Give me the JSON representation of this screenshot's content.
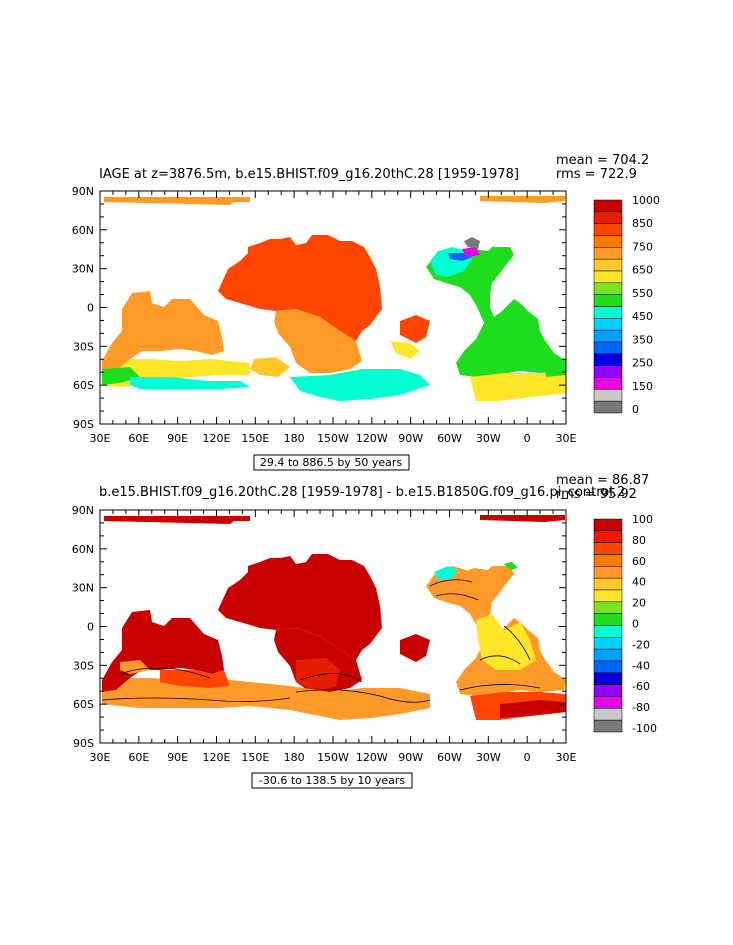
{
  "panels": [
    {
      "title": "IAGE at z=3876.5m, b.e15.BHIST.f09_g16.20thC.28 [1959-1978]",
      "stats": {
        "mean": "mean = 704.2",
        "rms": "rms = 722.9"
      },
      "contour_info": "29.4 to 886.5 by 50 years",
      "colorbar": {
        "labels": [
          "1000",
          "850",
          "750",
          "650",
          "550",
          "450",
          "350",
          "250",
          "150",
          "0"
        ],
        "colors": [
          "#c80000",
          "#e61e00",
          "#ff4600",
          "#ff7800",
          "#ff9a28",
          "#ffc828",
          "#ffe628",
          "#78e61e",
          "#1edc1e",
          "#00ffd2",
          "#00d2ff",
          "#00a0ff",
          "#0064ff",
          "#0000dc",
          "#9600ff",
          "#e600e6",
          "#c8c8c8",
          "#787878"
        ]
      }
    },
    {
      "title": "b.e15.BHIST.f09_g16.20thC.28 [1959-1978] - b.e15.B1850G.f09_g16.pi_control.2",
      "stats": {
        "mean": "mean = 86.87",
        "rms": "rms = 95.92"
      },
      "contour_info": "-30.6 to 138.5 by 10 years",
      "colorbar": {
        "labels": [
          "100",
          "80",
          "60",
          "40",
          "20",
          "0",
          "-20",
          "-40",
          "-60",
          "-80",
          "-100"
        ],
        "colors": [
          "#c80000",
          "#e61e00",
          "#ff4600",
          "#ff7800",
          "#ff9a28",
          "#ffc828",
          "#ffe628",
          "#78e61e",
          "#1edc1e",
          "#00ffd2",
          "#00d2ff",
          "#00a0ff",
          "#0064ff",
          "#0000dc",
          "#9600ff",
          "#e600e6",
          "#c8c8c8",
          "#787878"
        ]
      }
    }
  ],
  "axes": {
    "lat_labels": [
      "90N",
      "60N",
      "30N",
      "0",
      "30S",
      "60S",
      "90S"
    ],
    "lon_labels": [
      "30E",
      "60E",
      "90E",
      "120E",
      "150E",
      "180",
      "150W",
      "120W",
      "90W",
      "60W",
      "30W",
      "0",
      "30E"
    ]
  }
}
